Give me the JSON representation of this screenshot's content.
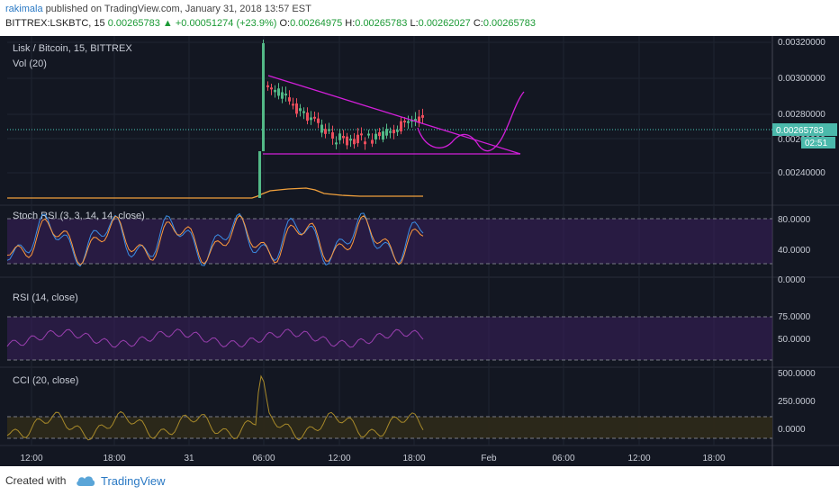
{
  "header": {
    "user": "rakimala",
    "published_text": "published on TradingView.com, January 31, 2018 13:57 EST",
    "symbol": "BITTREX:LSKBTC, 15",
    "last": "0.00265783",
    "change": "▲ +0.00051274 (+23.9%)",
    "o_label": "O:",
    "o": "0.00264975",
    "h_label": "H:",
    "h": "0.00265783",
    "l_label": "L:",
    "l": "0.00262027",
    "c_label": "C:",
    "c": "0.00265783"
  },
  "main_pane": {
    "title": "Lisk / Bitcoin, 15, BITTREX",
    "vol_label": "Vol (20)",
    "price_ticks": [
      "0.00320000",
      "0.00300000",
      "0.00280000",
      "0.00260000",
      "0.00240000"
    ],
    "price_tag": "0.00265783",
    "countdown": "02:51"
  },
  "stoch_pane": {
    "title": "Stoch RSI (3, 3, 14, 14, close)",
    "ticks": [
      "80.0000",
      "40.0000",
      "0.0000"
    ]
  },
  "rsi_pane": {
    "title": "RSI (14, close)",
    "ticks": [
      "75.0000",
      "50.0000"
    ]
  },
  "cci_pane": {
    "title": "CCI (20, close)",
    "ticks": [
      "500.0000",
      "250.0000",
      "0.0000"
    ]
  },
  "time_axis": [
    "12:00",
    "18:00",
    "31",
    "06:00",
    "12:00",
    "18:00",
    "Feb",
    "06:00",
    "12:00",
    "18:00"
  ],
  "footer": {
    "created_with": "Created with",
    "brand": "TradingView"
  },
  "colors": {
    "background": "#131722",
    "candle_up": "#53b987",
    "candle_down": "#eb4d5c",
    "pattern": "#d21fd9",
    "volume_line": "#f0a03c",
    "stoch_k": "#3b8ee5",
    "stoch_d": "#ff9a3c",
    "indicator_fill": "#3a1f5c",
    "rsi_line": "#9b3fb0",
    "cci_line": "#a88a2a",
    "cci_fill": "#2f2a1a"
  }
}
